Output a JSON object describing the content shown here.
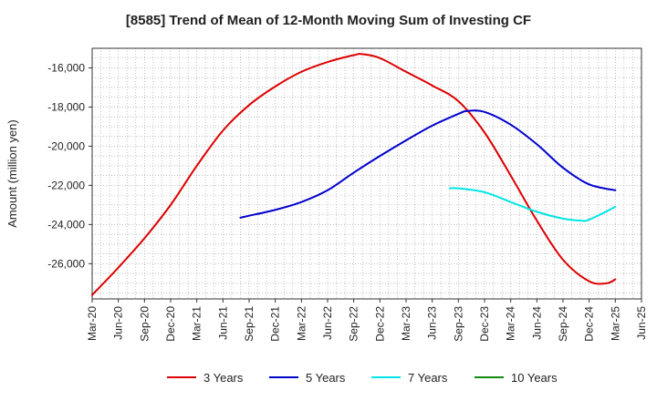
{
  "chart_data": {
    "type": "line",
    "title": "[8585]  Trend of Mean of 12-Month Moving Sum of Investing CF",
    "xlabel": "",
    "ylabel": "Amount (million yen)",
    "ylim": [
      -27800,
      -15000
    ],
    "y_ticks": [
      -16000,
      -18000,
      -20000,
      -22000,
      -24000,
      -26000
    ],
    "y_tick_labels": [
      "-16,000",
      "-18,000",
      "-20,000",
      "-22,000",
      "-24,000",
      "-26,000"
    ],
    "x_tick_labels": [
      "Mar-20",
      "Jun-20",
      "Sep-20",
      "Dec-20",
      "Mar-21",
      "Jun-21",
      "Sep-21",
      "Dec-21",
      "Mar-22",
      "Jun-22",
      "Sep-22",
      "Dec-22",
      "Mar-23",
      "Jun-23",
      "Sep-23",
      "Dec-23",
      "Mar-24",
      "Jun-24",
      "Sep-24",
      "Dec-24",
      "Mar-25",
      "Jun-25"
    ],
    "grid": true,
    "legend_position": "bottom",
    "series": [
      {
        "name": "3 Years",
        "color": "#dd0000",
        "x": [
          "Mar-20",
          "Jun-20",
          "Sep-20",
          "Dec-20",
          "Mar-21",
          "Jun-21",
          "Sep-21",
          "Dec-21",
          "Mar-22",
          "Jun-22",
          "Sep-22",
          "Oct-22",
          "Dec-22",
          "Mar-23",
          "Jun-23",
          "Sep-23",
          "Dec-23",
          "Mar-24",
          "Jun-24",
          "Sep-24",
          "Dec-24",
          "Feb-25",
          "Mar-25"
        ],
        "values": [
          -27600,
          -26200,
          -24700,
          -23000,
          -21000,
          -19200,
          -17900,
          -16950,
          -16200,
          -15700,
          -15350,
          -15300,
          -15500,
          -16200,
          -16900,
          -17700,
          -19300,
          -21500,
          -23800,
          -25800,
          -26900,
          -27000,
          -26800
        ]
      },
      {
        "name": "5 Years",
        "color": "#0000cc",
        "x": [
          "Aug-21",
          "Sep-21",
          "Dec-21",
          "Mar-22",
          "Jun-22",
          "Sep-22",
          "Dec-22",
          "Mar-23",
          "Jun-23",
          "Sep-23",
          "Oct-23",
          "Dec-23",
          "Mar-24",
          "Jun-24",
          "Sep-24",
          "Dec-24",
          "Mar-25"
        ],
        "values": [
          -23650,
          -23550,
          -23250,
          -22850,
          -22250,
          -21350,
          -20500,
          -19700,
          -18950,
          -18350,
          -18200,
          -18250,
          -18900,
          -19900,
          -21100,
          -21950,
          -22250
        ]
      },
      {
        "name": "7 Years",
        "color": "#00e5e5",
        "x": [
          "Aug-23",
          "Sep-23",
          "Dec-23",
          "Mar-24",
          "Jun-24",
          "Sep-24",
          "Nov-24",
          "Dec-24",
          "Mar-25"
        ],
        "values": [
          -22150,
          -22150,
          -22350,
          -22850,
          -23350,
          -23700,
          -23800,
          -23750,
          -23100
        ]
      },
      {
        "name": "10 Years",
        "color": "#118811",
        "x": [],
        "values": []
      }
    ]
  }
}
